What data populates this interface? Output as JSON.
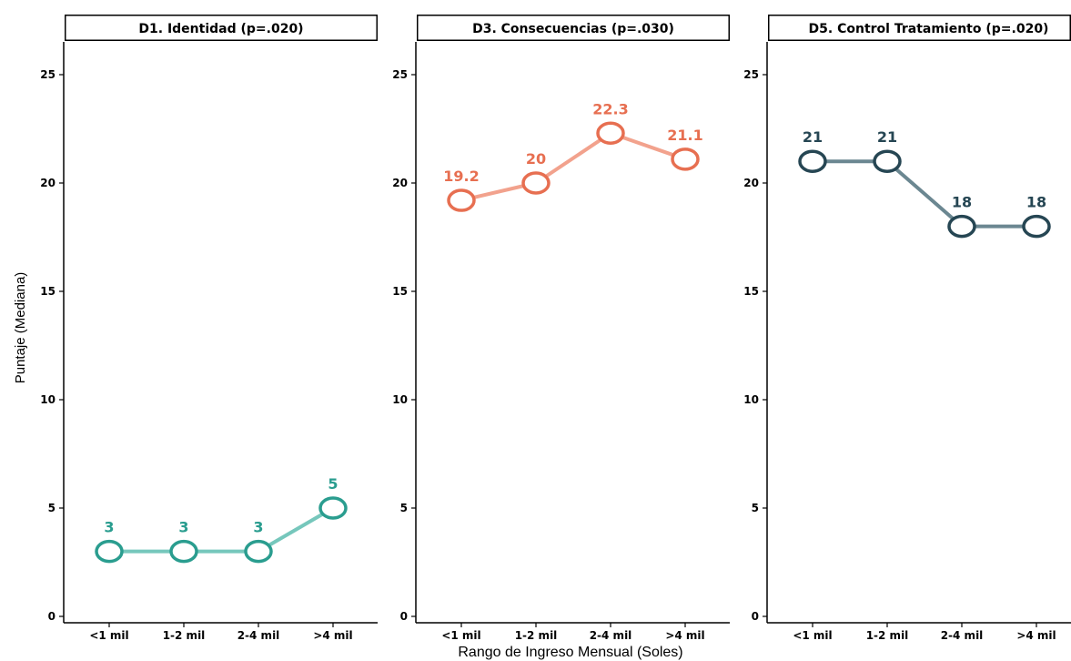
{
  "chart_data": {
    "type": "line",
    "ylabel": "Puntaje (Mediana)",
    "xlabel": "Rango de Ingreso Mensual (Soles)",
    "categories": [
      "<1 mil",
      "1-2 mil",
      "2-4 mil",
      ">4 mil"
    ],
    "ylim": [
      0,
      26
    ],
    "yticks": [
      0,
      5,
      10,
      15,
      20,
      25
    ],
    "grid": false,
    "legend": "none",
    "panels": [
      {
        "title": "D1. Identidad (p=.020)",
        "color": "#2a9d8f",
        "line_color": "#76c7bc",
        "values": [
          3,
          3,
          3,
          5
        ],
        "labels": [
          "3",
          "3",
          "3",
          "5"
        ]
      },
      {
        "title": "D3. Consecuencias (p=.030)",
        "color": "#e76f51",
        "line_color": "#f2a28d",
        "values": [
          19.2,
          20,
          22.3,
          21.1
        ],
        "labels": [
          "19.2",
          "20",
          "22.3",
          "21.1"
        ]
      },
      {
        "title": "D5. Control Tratamiento (p=.020)",
        "color": "#264653",
        "line_color": "#6b8791",
        "values": [
          21,
          21,
          18,
          18
        ],
        "labels": [
          "21",
          "21",
          "18",
          "18"
        ]
      }
    ]
  }
}
